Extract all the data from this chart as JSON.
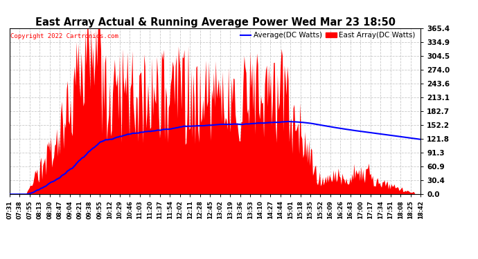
{
  "title": "East Array Actual & Running Average Power Wed Mar 23 18:50",
  "copyright": "Copyright 2022 Cartronics.com",
  "legend_avg": "Average(DC Watts)",
  "legend_east": "East Array(DC Watts)",
  "yticks": [
    0.0,
    30.4,
    60.9,
    91.3,
    121.8,
    152.2,
    182.7,
    213.1,
    243.6,
    274.0,
    304.5,
    334.9,
    365.4
  ],
  "ymax": 365.4,
  "ymin": 0.0,
  "bg_color": "#ffffff",
  "plot_bg_color": "#ffffff",
  "grid_color": "#c8c8c8",
  "bar_color": "#ff0000",
  "avg_line_color": "#0000ff",
  "title_color": "#000000",
  "copyright_color": "#ff0000",
  "xtick_labels": [
    "07:31",
    "07:38",
    "07:55",
    "08:13",
    "08:30",
    "08:47",
    "09:04",
    "09:21",
    "09:38",
    "09:55",
    "10:12",
    "10:29",
    "10:46",
    "11:03",
    "11:20",
    "11:37",
    "11:54",
    "12:02",
    "12:11",
    "12:28",
    "12:45",
    "13:02",
    "13:19",
    "13:36",
    "13:53",
    "14:10",
    "14:27",
    "14:44",
    "15:01",
    "15:18",
    "15:35",
    "15:52",
    "16:09",
    "16:26",
    "16:43",
    "17:00",
    "17:17",
    "17:34",
    "17:51",
    "18:08",
    "18:25",
    "18:42"
  ],
  "n_points": 420
}
